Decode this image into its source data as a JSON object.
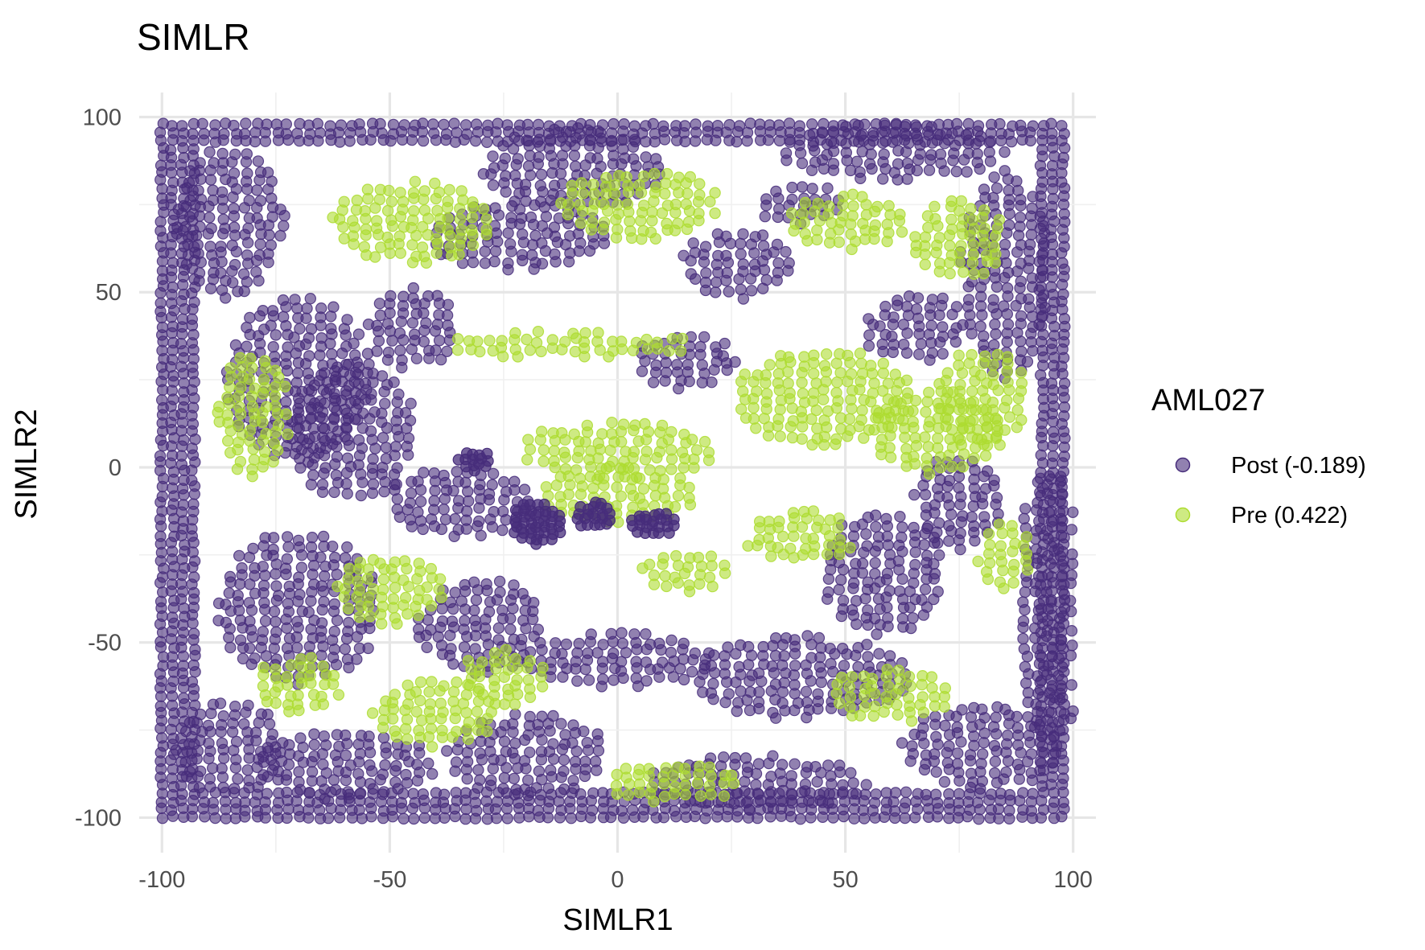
{
  "chart_data": {
    "type": "scatter",
    "title": "SIMLR",
    "xlabel": "SIMLR1",
    "ylabel": "SIMLR2",
    "xlim": [
      -105,
      105
    ],
    "ylim": [
      -110,
      107
    ],
    "x_ticks": [
      -100,
      -50,
      0,
      50,
      100
    ],
    "y_ticks": [
      -100,
      -50,
      0,
      50,
      100
    ],
    "x_tick_labels": [
      "-100",
      "-50",
      "0",
      "50",
      "100"
    ],
    "y_tick_labels": [
      "-100",
      "-50",
      "0",
      "50",
      "100"
    ],
    "grid": true,
    "legend": {
      "title": "AML027",
      "position": "right",
      "entries": [
        "Post (-0.189)",
        "Pre (0.422)"
      ]
    },
    "series": [
      {
        "name": "Post (-0.189)",
        "color": "#472d7b",
        "opacity": 0.6,
        "regions": [
          {
            "shape": "frame",
            "x": [
              -100,
              100
            ],
            "y": [
              -100,
              100
            ],
            "thickness": 8
          },
          {
            "shape": "ellipse",
            "cx": -70,
            "cy": 25,
            "rx": 16,
            "ry": 24
          },
          {
            "shape": "ellipse",
            "cx": -58,
            "cy": 10,
            "rx": 14,
            "ry": 20
          },
          {
            "shape": "ellipse",
            "cx": -22,
            "cy": 66,
            "rx": 20,
            "ry": 10
          },
          {
            "shape": "ellipse",
            "cx": 26,
            "cy": 58,
            "rx": 12,
            "ry": 10
          },
          {
            "shape": "ellipse",
            "cx": 60,
            "cy": 90,
            "rx": 25,
            "ry": 8
          },
          {
            "shape": "ellipse",
            "cx": 85,
            "cy": 55,
            "rx": 10,
            "ry": 30
          },
          {
            "shape": "ellipse",
            "cx": -70,
            "cy": -40,
            "rx": 18,
            "ry": 22
          },
          {
            "shape": "ellipse",
            "cx": -35,
            "cy": -10,
            "rx": 16,
            "ry": 10
          },
          {
            "shape": "ellipse",
            "cx": -30,
            "cy": -45,
            "rx": 14,
            "ry": 14
          },
          {
            "shape": "ellipse",
            "cx": 0,
            "cy": -55,
            "rx": 22,
            "ry": 8
          },
          {
            "shape": "ellipse",
            "cx": 40,
            "cy": -60,
            "rx": 24,
            "ry": 12
          },
          {
            "shape": "ellipse",
            "cx": 58,
            "cy": -30,
            "rx": 14,
            "ry": 18
          },
          {
            "shape": "ellipse",
            "cx": 75,
            "cy": -10,
            "rx": 10,
            "ry": 14
          },
          {
            "shape": "ellipse",
            "cx": -85,
            "cy": -80,
            "rx": 12,
            "ry": 14
          },
          {
            "shape": "ellipse",
            "cx": -20,
            "cy": -82,
            "rx": 18,
            "ry": 12
          },
          {
            "shape": "ellipse",
            "cx": 80,
            "cy": -80,
            "rx": 18,
            "ry": 12
          },
          {
            "shape": "ellipse",
            "cx": -85,
            "cy": 70,
            "rx": 12,
            "ry": 22
          },
          {
            "shape": "ellipse",
            "cx": -10,
            "cy": 85,
            "rx": 20,
            "ry": 12
          },
          {
            "shape": "ellipse",
            "cx": 15,
            "cy": 30,
            "rx": 12,
            "ry": 8
          },
          {
            "shape": "ellipse",
            "cx": -45,
            "cy": 40,
            "rx": 10,
            "ry": 12
          },
          {
            "shape": "ellipse",
            "cx": 40,
            "cy": 75,
            "rx": 10,
            "ry": 6
          },
          {
            "shape": "ellipse",
            "cx": 65,
            "cy": 40,
            "rx": 12,
            "ry": 10
          },
          {
            "shape": "ellipse",
            "cx": 95,
            "cy": -40,
            "rx": 8,
            "ry": 40
          },
          {
            "shape": "ellipse",
            "cx": -60,
            "cy": -85,
            "rx": 20,
            "ry": 10
          },
          {
            "shape": "ellipse",
            "cx": 30,
            "cy": -90,
            "rx": 25,
            "ry": 8
          }
        ],
        "dense_clusters": [
          {
            "cx": -31,
            "cy": 2,
            "rx": 4,
            "ry": 3
          },
          {
            "cx": -18,
            "cy": -16,
            "rx": 6,
            "ry": 6
          },
          {
            "cx": -5,
            "cy": -14,
            "rx": 5,
            "ry": 4
          },
          {
            "cx": 8,
            "cy": -16,
            "rx": 5,
            "ry": 4
          }
        ]
      },
      {
        "name": "Pre (0.422)",
        "color": "#addc30",
        "opacity": 0.6,
        "regions": [
          {
            "shape": "ellipse",
            "cx": 0,
            "cy": 5,
            "rx": 22,
            "ry": 8
          },
          {
            "shape": "ellipse",
            "cx": 0,
            "cy": -8,
            "rx": 18,
            "ry": 8
          },
          {
            "shape": "ellipse",
            "cx": 45,
            "cy": 20,
            "rx": 20,
            "ry": 14
          },
          {
            "shape": "ellipse",
            "cx": 70,
            "cy": 10,
            "rx": 15,
            "ry": 12
          },
          {
            "shape": "ellipse",
            "cx": -45,
            "cy": 70,
            "rx": 18,
            "ry": 12
          },
          {
            "shape": "ellipse",
            "cx": 5,
            "cy": 75,
            "rx": 18,
            "ry": 10
          },
          {
            "shape": "ellipse",
            "cx": 50,
            "cy": 70,
            "rx": 14,
            "ry": 8
          },
          {
            "shape": "ellipse",
            "cx": -80,
            "cy": 15,
            "rx": 8,
            "ry": 18
          },
          {
            "shape": "ellipse",
            "cx": -50,
            "cy": -35,
            "rx": 12,
            "ry": 10
          },
          {
            "shape": "ellipse",
            "cx": -70,
            "cy": -62,
            "rx": 10,
            "ry": 8
          },
          {
            "shape": "ellipse",
            "cx": -40,
            "cy": -70,
            "rx": 14,
            "ry": 10
          },
          {
            "shape": "ellipse",
            "cx": -25,
            "cy": -60,
            "rx": 10,
            "ry": 8
          },
          {
            "shape": "ellipse",
            "cx": 12,
            "cy": -90,
            "rx": 15,
            "ry": 6
          },
          {
            "shape": "ellipse",
            "cx": 60,
            "cy": -65,
            "rx": 14,
            "ry": 8
          },
          {
            "shape": "ellipse",
            "cx": 75,
            "cy": 65,
            "rx": 10,
            "ry": 12
          },
          {
            "shape": "ellipse",
            "cx": 80,
            "cy": 20,
            "rx": 10,
            "ry": 14
          },
          {
            "shape": "ellipse",
            "cx": -10,
            "cy": 35,
            "rx": 28,
            "ry": 4
          },
          {
            "shape": "ellipse",
            "cx": 40,
            "cy": -20,
            "rx": 12,
            "ry": 8
          },
          {
            "shape": "ellipse",
            "cx": 15,
            "cy": -30,
            "rx": 10,
            "ry": 6
          },
          {
            "shape": "ellipse",
            "cx": 85,
            "cy": -25,
            "rx": 6,
            "ry": 10
          }
        ]
      }
    ]
  }
}
